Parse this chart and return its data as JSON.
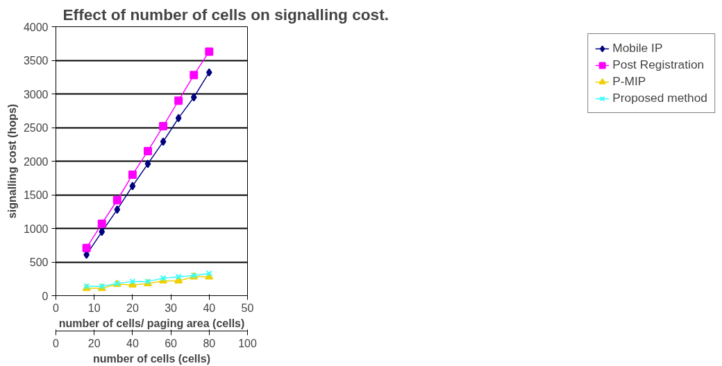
{
  "chart_data": {
    "type": "line",
    "title": "Effect of number of cells on signalling cost.",
    "xlabel": "number of cells/ paging area (cells)",
    "ylabel": "signalling cost (hops)",
    "x2label": "number of cells (cells)",
    "x": [
      8,
      12,
      16,
      20,
      24,
      28,
      32,
      36,
      40
    ],
    "xlim": [
      0,
      50
    ],
    "xticks": [
      0,
      10,
      20,
      30,
      40,
      50
    ],
    "x2lim": [
      0,
      100
    ],
    "x2ticks": [
      0,
      20,
      40,
      60,
      80,
      100
    ],
    "ylim": [
      0,
      4000
    ],
    "yticks": [
      0,
      500,
      1000,
      1500,
      2000,
      2500,
      3000,
      3500,
      4000
    ],
    "grid": "y",
    "legend": "right",
    "series": [
      {
        "name": "Mobile IP",
        "color": "#000080",
        "marker": "diamond",
        "values": [
          610,
          950,
          1280,
          1630,
          1960,
          2290,
          2640,
          2950,
          3320
        ]
      },
      {
        "name": "Post Registration",
        "color": "#ff00ff",
        "marker": "square",
        "values": [
          710,
          1070,
          1420,
          1800,
          2150,
          2520,
          2900,
          3280,
          3630
        ]
      },
      {
        "name": "P-MIP",
        "color": "#f0d000",
        "marker": "triangle",
        "values": [
          110,
          110,
          170,
          160,
          180,
          220,
          220,
          280,
          280
        ]
      },
      {
        "name": "Proposed method",
        "color": "#33ffff",
        "marker": "cross",
        "values": [
          140,
          140,
          180,
          210,
          210,
          260,
          280,
          300,
          330
        ]
      }
    ]
  }
}
